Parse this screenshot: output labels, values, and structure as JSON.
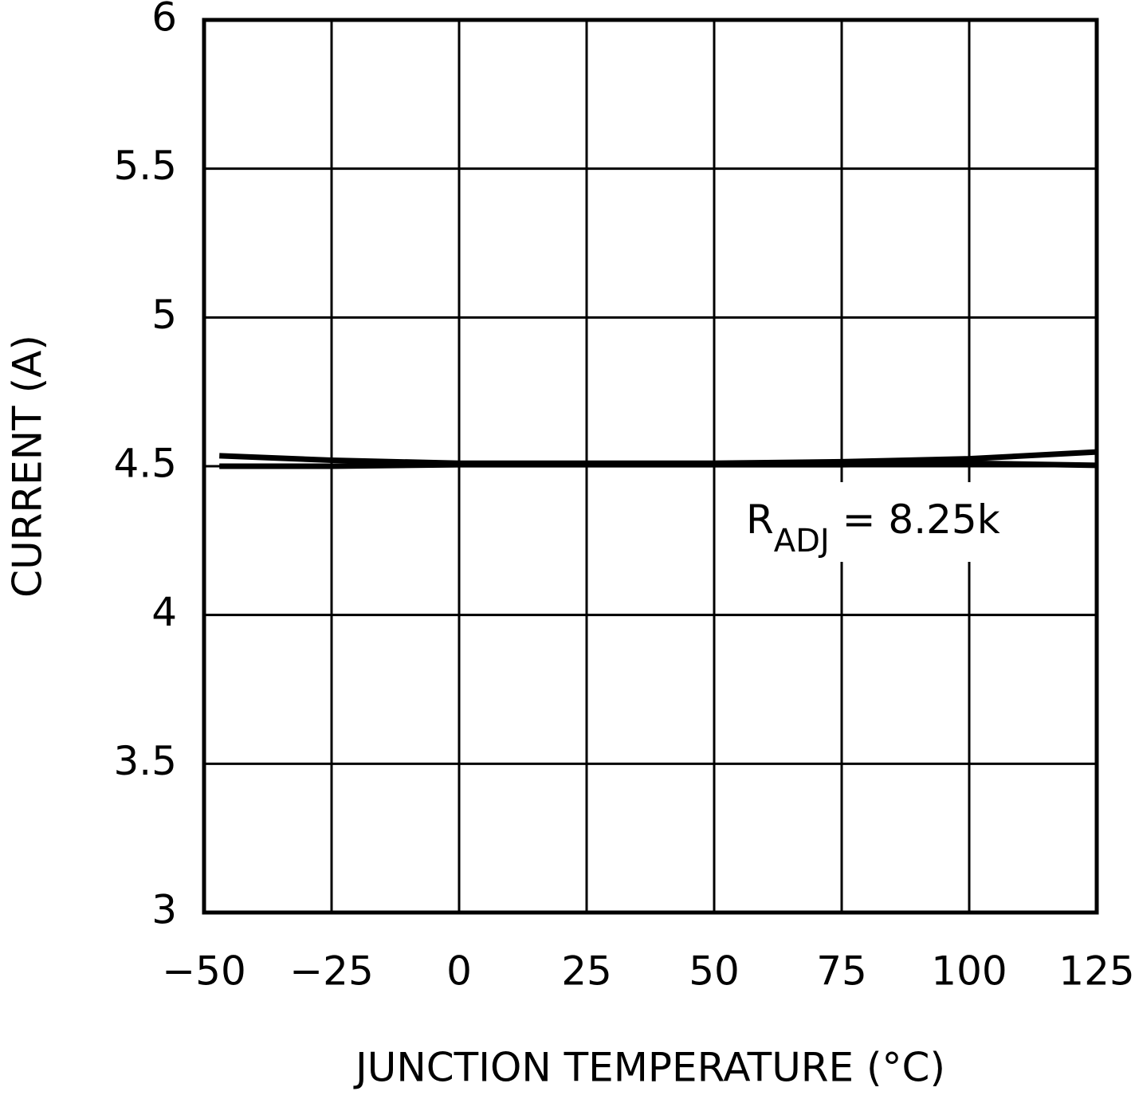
{
  "chart_data": {
    "type": "line",
    "x_label": "JUNCTION TEMPERATURE (°C)",
    "y_label": "CURRENT (A)",
    "annotation": {
      "main": "R",
      "sub": "ADJ",
      "rest": " = 8.25k"
    },
    "x": [
      -47,
      -25,
      0,
      25,
      50,
      75,
      100,
      125
    ],
    "series": [
      {
        "color": "#000000",
        "values": [
          4.535,
          4.52,
          4.51,
          4.51,
          4.51,
          4.515,
          4.525,
          4.548
        ]
      },
      {
        "color": "#000000",
        "values": [
          4.5,
          4.5,
          4.505,
          4.505,
          4.505,
          4.505,
          4.51,
          4.503
        ]
      }
    ],
    "xlim": [
      -50,
      125
    ],
    "xticks": [
      {
        "value": -50,
        "label": "−50"
      },
      {
        "value": -25,
        "label": "−25"
      },
      0,
      25,
      50,
      75,
      100,
      125
    ],
    "ylim": [
      3,
      6
    ],
    "yticks": [
      3,
      3.5,
      4,
      4.5,
      5,
      5.5,
      6
    ],
    "grid": true
  }
}
